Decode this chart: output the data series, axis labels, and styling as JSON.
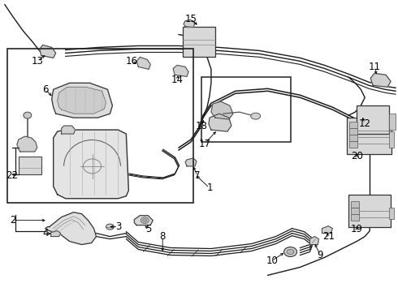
{
  "bg_color": "#ffffff",
  "lc": "#1a1a1a",
  "pc": "#e8e8e8",
  "fs": 8.5,
  "lw": 0.8
}
